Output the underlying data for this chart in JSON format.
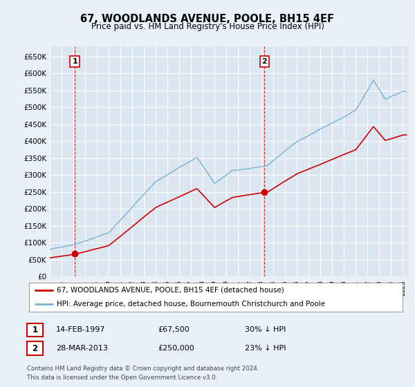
{
  "title": "67, WOODLANDS AVENUE, POOLE, BH15 4EF",
  "subtitle": "Price paid vs. HM Land Registry's House Price Index (HPI)",
  "ylabel_ticks": [
    "£0",
    "£50K",
    "£100K",
    "£150K",
    "£200K",
    "£250K",
    "£300K",
    "£350K",
    "£400K",
    "£450K",
    "£500K",
    "£550K",
    "£600K",
    "£650K"
  ],
  "ylim": [
    0,
    680000
  ],
  "xlim_start": 1995.0,
  "xlim_end": 2025.5,
  "bg_color": "#e8f0f8",
  "plot_bg_color": "#dce6f0",
  "legend_label_red": "67, WOODLANDS AVENUE, POOLE, BH15 4EF (detached house)",
  "legend_label_blue": "HPI: Average price, detached house, Bournemouth Christchurch and Poole",
  "sale1_date": 1997.12,
  "sale1_price": 67500,
  "sale1_label": "1",
  "sale2_date": 2013.24,
  "sale2_price": 250000,
  "sale2_label": "2",
  "footer": "Contains HM Land Registry data © Crown copyright and database right 2024.\nThis data is licensed under the Open Government Licence v3.0.",
  "red_color": "#cc0000",
  "blue_color": "#7ab0d4",
  "vline_color": "#cc0000",
  "grid_color": "#ffffff",
  "title_fontsize": 10.5,
  "subtitle_fontsize": 8.5
}
